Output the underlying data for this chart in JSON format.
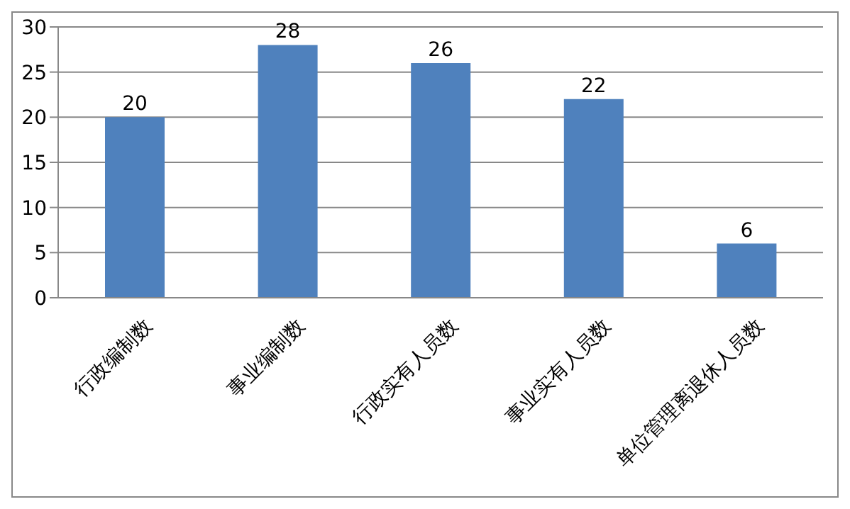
{
  "chart_data": {
    "type": "bar",
    "categories": [
      "行政编制数",
      "事业编制数",
      "行政实有人员数",
      "事业实有人员数",
      "单位管理离退休人员数"
    ],
    "values": [
      20,
      28,
      26,
      22,
      6
    ],
    "color": "#4f81bd",
    "ylim": [
      0,
      30
    ],
    "yticks": [
      0,
      5,
      10,
      15,
      20,
      25,
      30
    ],
    "grid": "y",
    "data_labels": true
  }
}
